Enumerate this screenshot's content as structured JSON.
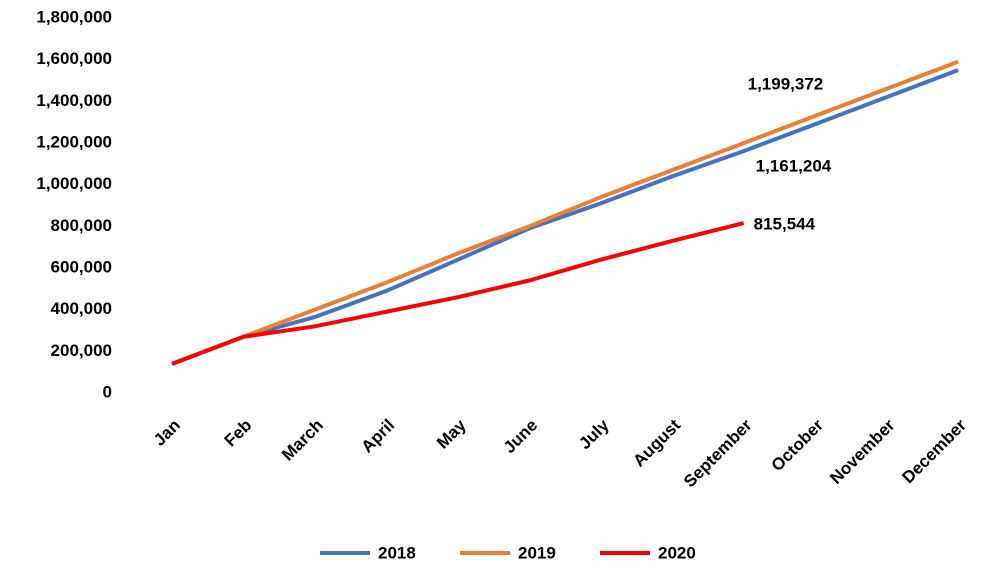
{
  "chart_data": {
    "type": "line",
    "categories": [
      "Jan",
      "Feb",
      "March",
      "April",
      "May",
      "June",
      "July",
      "August",
      "September",
      "October",
      "November",
      "December"
    ],
    "series": [
      {
        "name": "2018",
        "color": "#4472c4",
        "values": [
          140000,
          270000,
          365000,
          490000,
          640000,
          790000,
          910000,
          1040000,
          1161204,
          1290000,
          1420000,
          1550000
        ],
        "value_labels": [
          null,
          null,
          null,
          null,
          null,
          null,
          null,
          null,
          "1,161,204",
          null,
          null,
          null
        ]
      },
      {
        "name": "2019",
        "color": "#ed7d31",
        "values": [
          140000,
          270000,
          400000,
          530000,
          670000,
          800000,
          940000,
          1070000,
          1199372,
          1330000,
          1460000,
          1590000
        ],
        "value_labels": [
          null,
          null,
          null,
          null,
          null,
          null,
          null,
          null,
          "1,199,372",
          null,
          null,
          null
        ]
      },
      {
        "name": "2020",
        "color": "#ff0000",
        "values": [
          140000,
          270000,
          320000,
          390000,
          460000,
          540000,
          640000,
          730000,
          815544,
          null,
          null,
          null
        ],
        "value_labels": [
          null,
          null,
          null,
          null,
          null,
          null,
          null,
          null,
          "815,544",
          null,
          null,
          null
        ]
      }
    ],
    "ylim": [
      0,
      1800000
    ],
    "yticks": [
      0,
      {
        "value": 200000,
        "label": "200,000"
      },
      {
        "value": 400000,
        "label": "400,000"
      },
      {
        "value": 600000,
        "label": "600,000"
      },
      {
        "value": 800000,
        "label": "800,000"
      },
      {
        "value": 1000000,
        "label": "1,000,000"
      },
      {
        "value": 1200000,
        "label": "1,200,000"
      },
      {
        "value": 1400000,
        "label": "1,400,000"
      },
      {
        "value": 1600000,
        "label": "1,600,000"
      },
      {
        "value": 1800000,
        "label": "1,800,000"
      }
    ],
    "grid": false,
    "legend": "bottom"
  }
}
